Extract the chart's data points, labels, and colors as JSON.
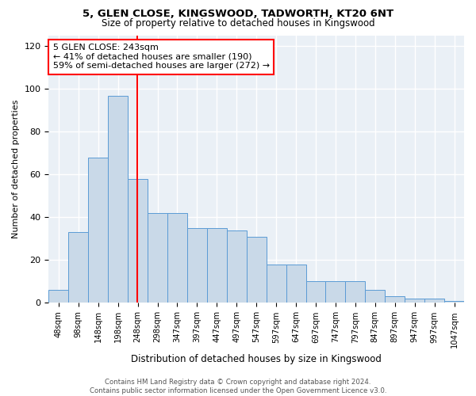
{
  "title1": "5, GLEN CLOSE, KINGSWOOD, TADWORTH, KT20 6NT",
  "title2": "Size of property relative to detached houses in Kingswood",
  "xlabel": "Distribution of detached houses by size in Kingswood",
  "ylabel": "Number of detached properties",
  "bar_labels": [
    "48sqm",
    "98sqm",
    "148sqm",
    "198sqm",
    "248sqm",
    "298sqm",
    "347sqm",
    "397sqm",
    "447sqm",
    "497sqm",
    "547sqm",
    "597sqm",
    "647sqm",
    "697sqm",
    "747sqm",
    "797sqm",
    "847sqm",
    "897sqm",
    "947sqm",
    "997sqm",
    "1047sqm"
  ],
  "bar_values": [
    6,
    33,
    68,
    97,
    58,
    42,
    42,
    35,
    35,
    34,
    31,
    18,
    18,
    10,
    10,
    10,
    6,
    3,
    2,
    2,
    1
  ],
  "bar_color": "#c9d9e8",
  "bar_edge_color": "#5b9bd5",
  "vline_color": "red",
  "vline_pos": 3.97,
  "annotation_text": "5 GLEN CLOSE: 243sqm\n← 41% of detached houses are smaller (190)\n59% of semi-detached houses are larger (272) →",
  "ylim": [
    0,
    125
  ],
  "yticks": [
    0,
    20,
    40,
    60,
    80,
    100,
    120
  ],
  "footer": "Contains HM Land Registry data © Crown copyright and database right 2024.\nContains public sector information licensed under the Open Government Licence v3.0.",
  "background_color": "#eaf0f6",
  "grid_color": "white"
}
